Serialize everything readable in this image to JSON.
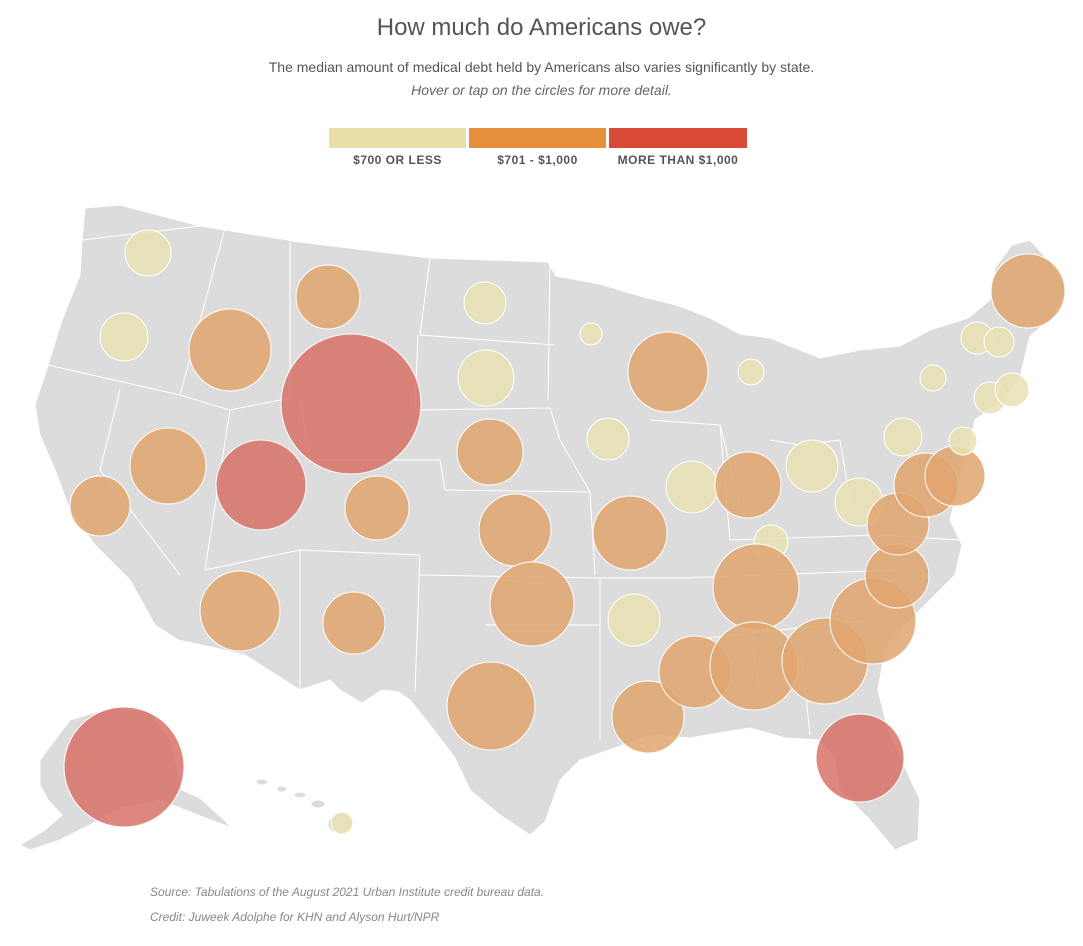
{
  "header": {
    "title": "How much do Americans owe?",
    "subtitle": "The median amount of medical debt held by Americans also varies significantly by state.",
    "instruction": "Hover or tap on the circles for more detail."
  },
  "legend": [
    {
      "label": "$700 OR LESS",
      "color": "#e9dfa8"
    },
    {
      "label": "$701 - $1,000",
      "color": "#e68f3a"
    },
    {
      "label": "MORE THAN $1,000",
      "color": "#d84a36"
    }
  ],
  "colors": {
    "land": "#dcdcdc",
    "border": "#ffffff",
    "low": "#e9e2b3",
    "mid": "#e0a46f",
    "high": "#d76d63"
  },
  "footer": {
    "source": "Source: Tabulations of the August 2021 Urban Institute credit bureau data.",
    "credit": "Credit: Juweek Adolphe for KHN and Alyson Hurt/NPR"
  }
}
